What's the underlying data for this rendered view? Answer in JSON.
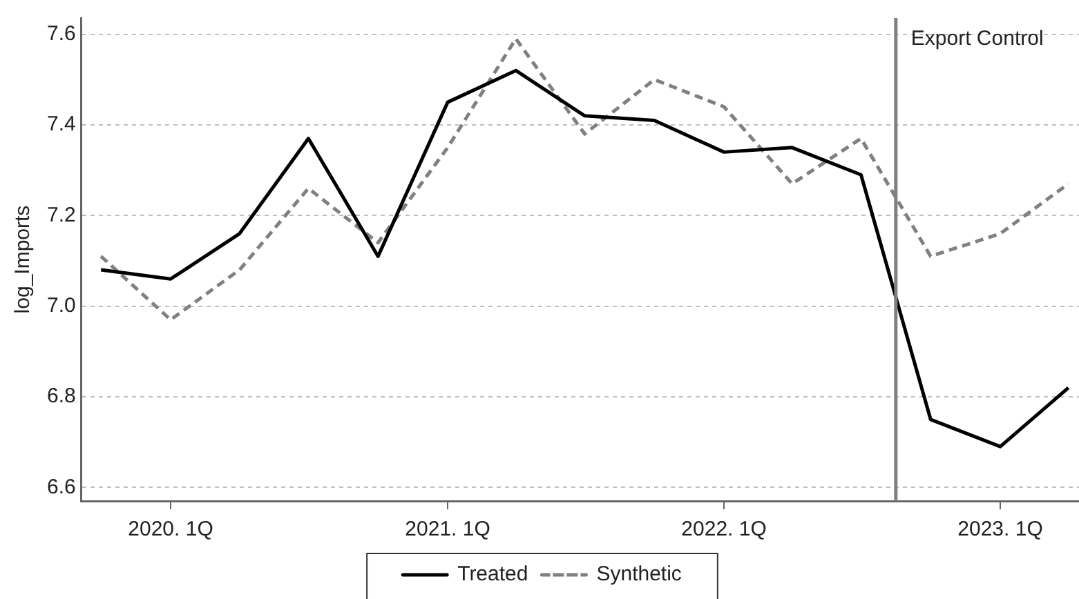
{
  "chart_data": {
    "type": "line",
    "ylabel": "log_Imports",
    "x": [
      "2019-10",
      "2020-01",
      "2020-04",
      "2020-07",
      "2020-10",
      "2021-01",
      "2021-04",
      "2021-07",
      "2021-10",
      "2022-01",
      "2022-04",
      "2022-07",
      "2022-10",
      "2023-01",
      "2023-04"
    ],
    "series": [
      {
        "name": "Treated",
        "color": "#000000",
        "line_style": "solid",
        "values": [
          7.08,
          7.06,
          7.16,
          7.37,
          7.11,
          7.45,
          7.52,
          7.42,
          7.41,
          7.34,
          7.35,
          7.29,
          6.75,
          6.69,
          6.82
        ]
      },
      {
        "name": "Synthetic",
        "color": "#808080",
        "line_style": "dashed",
        "values": [
          7.11,
          6.97,
          7.08,
          7.26,
          7.14,
          7.35,
          7.59,
          7.38,
          7.5,
          7.44,
          7.27,
          7.37,
          7.11,
          7.16,
          7.27
        ]
      }
    ],
    "xlim": [
      "2019-09-05",
      "2023-04-15"
    ],
    "xticks": [
      {
        "value": "2020-01",
        "label": "2020. 1Q"
      },
      {
        "value": "2021-01",
        "label": "2021. 1Q"
      },
      {
        "value": "2022-01",
        "label": "2022. 1Q"
      },
      {
        "value": "2023-01",
        "label": "2023. 1Q"
      }
    ],
    "ylim": [
      6.57,
      7.636
    ],
    "yticks": [
      {
        "value": 6.6,
        "label": "6.6"
      },
      {
        "value": 6.8,
        "label": "6.8"
      },
      {
        "value": 7.0,
        "label": "7.0"
      },
      {
        "value": 7.2,
        "label": "7.2"
      },
      {
        "value": 7.4,
        "label": "7.4"
      },
      {
        "value": 7.6,
        "label": "7.6"
      }
    ],
    "ref_lines": [
      {
        "axis": "x",
        "value": "2022-08-16",
        "label": "Export Control",
        "color": "#808080"
      }
    ],
    "grid": "y",
    "legend": "bottom",
    "marker": "none"
  }
}
